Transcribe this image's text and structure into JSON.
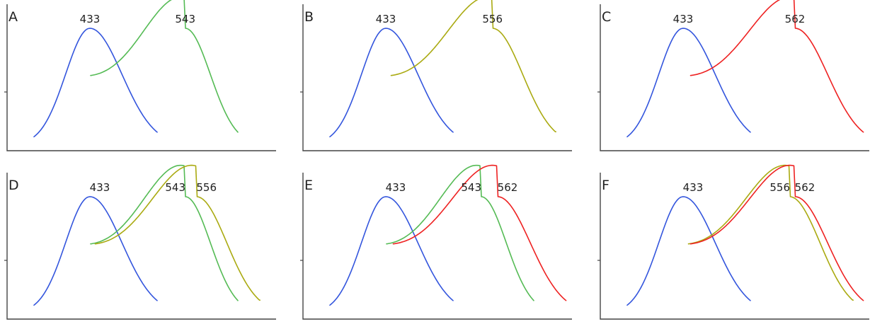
{
  "colors": {
    "433": "#3355dd",
    "543": "#55bb55",
    "556": "#aaaa11",
    "562": "#ee2222"
  },
  "chart_data": [
    {
      "type": "line",
      "label": "A",
      "title": "",
      "xlabel": "",
      "ylabel": "",
      "series": [
        {
          "peak": 433,
          "color": "#3355dd",
          "peak_label": "433"
        },
        {
          "peak": 543,
          "color": "#55bb55",
          "peak_label": "543"
        }
      ]
    },
    {
      "type": "line",
      "label": "B",
      "title": "",
      "xlabel": "",
      "ylabel": "",
      "series": [
        {
          "peak": 433,
          "color": "#3355dd",
          "peak_label": "433"
        },
        {
          "peak": 556,
          "color": "#aaaa11",
          "peak_label": "556"
        }
      ]
    },
    {
      "type": "line",
      "label": "C",
      "title": "",
      "xlabel": "",
      "ylabel": "",
      "series": [
        {
          "peak": 433,
          "color": "#3355dd",
          "peak_label": "433"
        },
        {
          "peak": 562,
          "color": "#ee2222",
          "peak_label": "562"
        }
      ]
    },
    {
      "type": "line",
      "label": "D",
      "title": "",
      "xlabel": "",
      "ylabel": "",
      "series": [
        {
          "peak": 433,
          "color": "#3355dd",
          "peak_label": "433"
        },
        {
          "peak": 543,
          "color": "#55bb55",
          "peak_label": "543"
        },
        {
          "peak": 556,
          "color": "#aaaa11",
          "peak_label": "556"
        }
      ]
    },
    {
      "type": "line",
      "label": "E",
      "title": "",
      "xlabel": "",
      "ylabel": "",
      "series": [
        {
          "peak": 433,
          "color": "#3355dd",
          "peak_label": "433"
        },
        {
          "peak": 543,
          "color": "#55bb55",
          "peak_label": "543"
        },
        {
          "peak": 562,
          "color": "#ee2222",
          "peak_label": "562"
        }
      ]
    },
    {
      "type": "line",
      "label": "F",
      "title": "",
      "xlabel": "",
      "ylabel": "",
      "series": [
        {
          "peak": 433,
          "color": "#3355dd",
          "peak_label": "433"
        },
        {
          "peak": 556,
          "color": "#aaaa11",
          "peak_label": "556"
        },
        {
          "peak": 562,
          "color": "#ee2222",
          "peak_label": "562"
        }
      ]
    }
  ]
}
